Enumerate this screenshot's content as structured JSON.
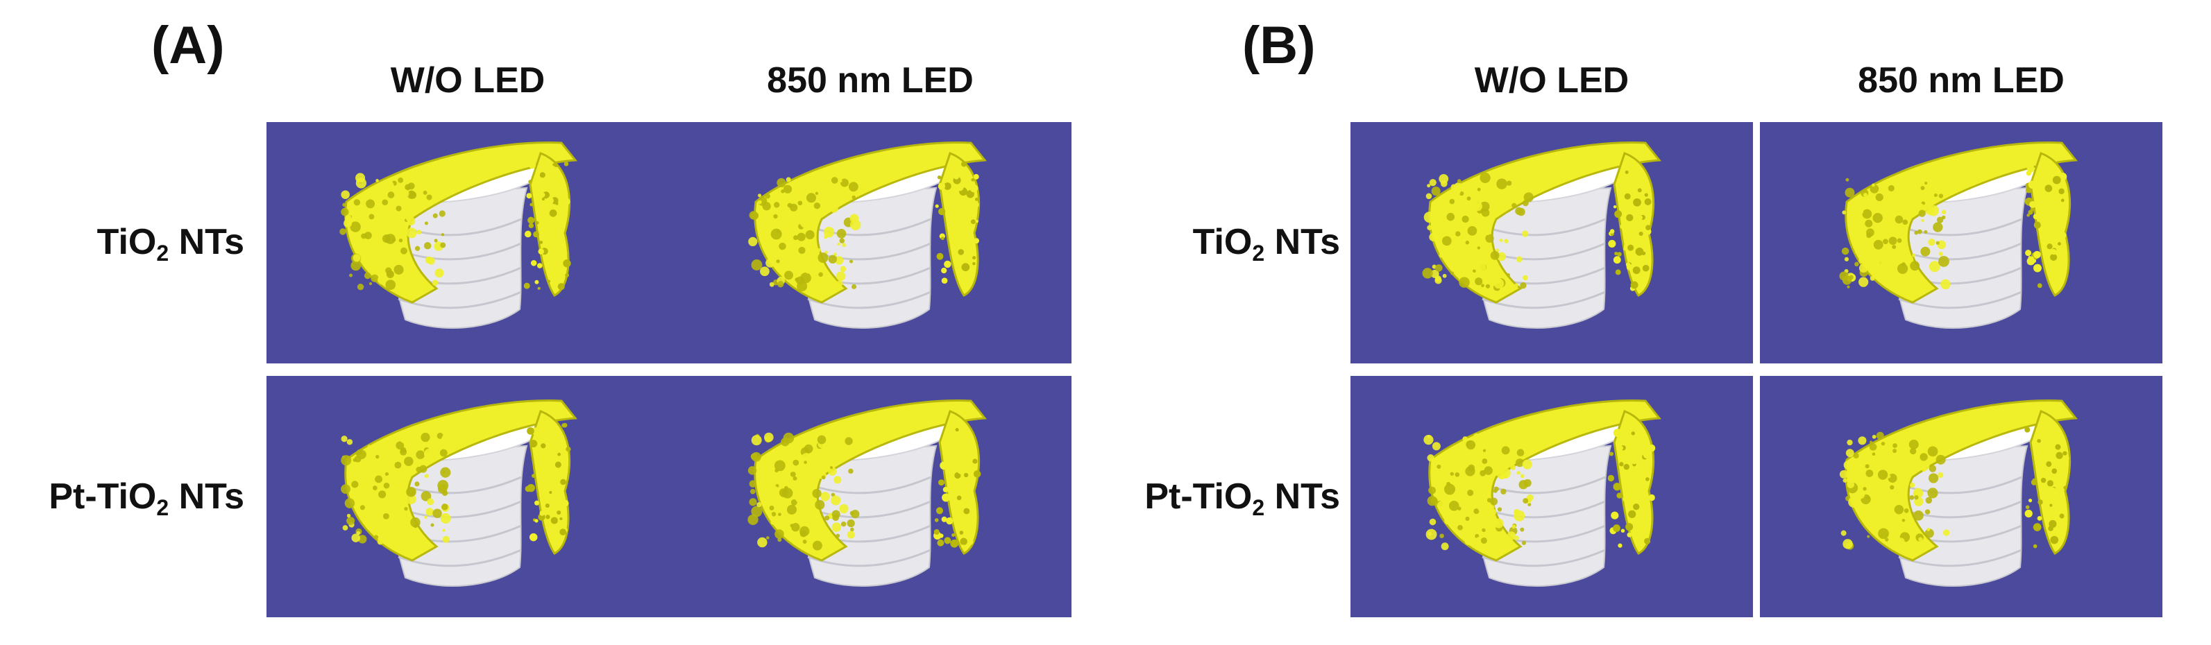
{
  "panels": [
    {
      "letter": "(A)",
      "columns": [
        "W/O LED",
        "850 nm LED"
      ],
      "rows": [
        {
          "prefix": "TiO",
          "sub": "2",
          "suffix": " NTs"
        },
        {
          "prefix": "Pt-TiO",
          "sub": "2",
          "suffix": " NTs"
        }
      ]
    },
    {
      "letter": "(B)",
      "columns": [
        "W/O LED",
        "850 nm LED"
      ],
      "rows": [
        {
          "prefix": "TiO",
          "sub": "2",
          "suffix": " NTs"
        },
        {
          "prefix": "Pt-TiO",
          "sub": "2",
          "suffix": " NTs"
        }
      ]
    }
  ],
  "colors": {
    "background": "#4b4a9c",
    "implant": "#e8e8ec",
    "bone": "#f0f02a",
    "bone_shadow": "#b8b80c"
  }
}
